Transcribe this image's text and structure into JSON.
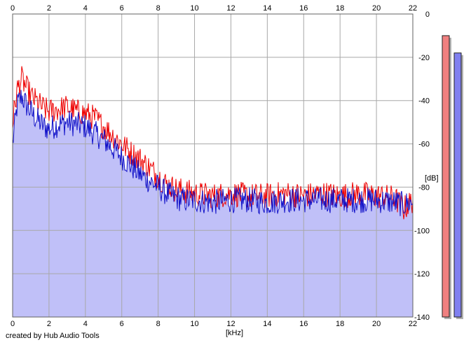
{
  "footer": {
    "credit": "created by Hub Audio Tools"
  },
  "chart_data": {
    "type": "line",
    "xlabel": "[kHz]",
    "ylabel": "[dB]",
    "xlim": [
      0,
      22
    ],
    "ylim": [
      -140,
      0
    ],
    "x_ticks": [
      0,
      2,
      4,
      6,
      8,
      10,
      12,
      14,
      16,
      18,
      20,
      22
    ],
    "y_ticks": [
      0,
      -20,
      -40,
      -60,
      -80,
      -100,
      -120,
      -140
    ],
    "grid": true,
    "colors": {
      "red": "#ee0000",
      "blue": "#1010c8",
      "blue_fill": "#c0c0f8",
      "level_red": "#f08080",
      "level_blue": "#8080f0"
    },
    "series": [
      {
        "color": "red",
        "x": [
          0,
          0.25,
          0.5,
          0.75,
          1,
          1.25,
          1.5,
          1.75,
          2,
          2.5,
          3,
          3.5,
          4,
          4.5,
          5,
          5.5,
          6,
          6.5,
          7,
          7.5,
          8,
          8.5,
          9,
          9.5,
          10,
          11,
          12,
          13,
          14,
          15,
          16,
          17,
          18,
          19,
          20,
          21,
          21.5,
          22
        ],
        "values": [
          -50,
          -35,
          -30,
          -34,
          -38,
          -40,
          -42,
          -44,
          -45,
          -44,
          -43,
          -45,
          -46,
          -48,
          -52,
          -56,
          -60,
          -64,
          -67,
          -71,
          -75,
          -79,
          -81,
          -82,
          -83,
          -84,
          -83,
          -84,
          -84,
          -83,
          -84,
          -83,
          -84,
          -83,
          -84,
          -85,
          -90,
          -86
        ]
      },
      {
        "color": "blue",
        "x": [
          0,
          0.25,
          0.5,
          0.75,
          1,
          1.25,
          1.5,
          1.75,
          2,
          2.5,
          3,
          3.5,
          4,
          4.5,
          5,
          5.5,
          6,
          6.5,
          7,
          7.5,
          8,
          8.5,
          9,
          9.5,
          10,
          11,
          12,
          13,
          14,
          15,
          16,
          17,
          18,
          19,
          20,
          21,
          21.5,
          22
        ],
        "values": [
          -60,
          -42,
          -38,
          -42,
          -45,
          -48,
          -50,
          -52,
          -53,
          -51,
          -50,
          -51,
          -52,
          -55,
          -58,
          -62,
          -66,
          -70,
          -74,
          -77,
          -80,
          -83,
          -85,
          -86,
          -86,
          -87,
          -86,
          -86,
          -87,
          -86,
          -86,
          -86,
          -86,
          -86,
          -86,
          -87,
          -88,
          -87
        ]
      }
    ],
    "levels": [
      {
        "color": "red",
        "value_db": -10
      },
      {
        "color": "blue",
        "value_db": -18
      }
    ]
  }
}
